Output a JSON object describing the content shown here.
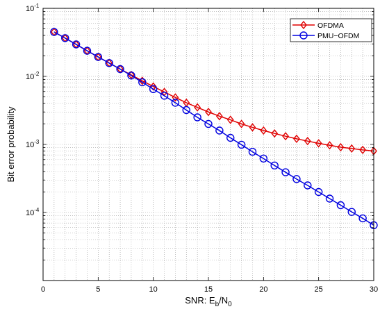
{
  "chart_data": {
    "type": "line",
    "xlabel": {
      "main": "SNR: E",
      "sub1": "b",
      "slash": "/N",
      "sub2": "0"
    },
    "ylabel": "Bit error probability",
    "xlim": [
      0,
      30
    ],
    "ylim": [
      1e-05,
      0.1
    ],
    "yscale": "log",
    "grid": true,
    "legend_position": "top-right",
    "x_ticks": [
      0,
      5,
      10,
      15,
      20,
      25,
      30
    ],
    "x_tick_labels": [
      "0",
      "5",
      "10",
      "15",
      "20",
      "25",
      "30"
    ],
    "y_ticks": [
      0.1,
      0.01,
      0.001,
      0.0001
    ],
    "y_tick_labels": [
      {
        "base": "10",
        "exp": "-1"
      },
      {
        "base": "10",
        "exp": "-2"
      },
      {
        "base": "10",
        "exp": "-3"
      },
      {
        "base": "10",
        "exp": "-4"
      }
    ],
    "x": [
      1,
      2,
      3,
      4,
      5,
      6,
      7,
      8,
      9,
      10,
      11,
      12,
      13,
      14,
      15,
      16,
      17,
      18,
      19,
      20,
      21,
      22,
      23,
      24,
      25,
      26,
      27,
      28,
      29,
      30
    ],
    "series": [
      {
        "name": "OFDMA",
        "color": "#e00000",
        "marker": "diamond",
        "values": [
          0.045,
          0.0365,
          0.0295,
          0.0238,
          0.0193,
          0.0157,
          0.0128,
          0.0105,
          0.0086,
          0.0071,
          0.0059,
          0.0049,
          0.0041,
          0.0035,
          0.003,
          0.0026,
          0.0023,
          0.002,
          0.00178,
          0.0016,
          0.00145,
          0.00132,
          0.00121,
          0.00112,
          0.00104,
          0.00097,
          0.00091,
          0.00087,
          0.00083,
          0.0008
        ]
      },
      {
        "name": "PMU−OFDM",
        "color": "#0000e0",
        "marker": "circle",
        "values": [
          0.045,
          0.0365,
          0.0295,
          0.0238,
          0.0193,
          0.0157,
          0.0128,
          0.0103,
          0.0082,
          0.0065,
          0.0052,
          0.0041,
          0.0032,
          0.0025,
          0.002,
          0.0016,
          0.00125,
          0.00099,
          0.00078,
          0.00062,
          0.00049,
          0.00039,
          0.00031,
          0.00025,
          0.0002,
          0.00016,
          0.000128,
          0.000102,
          8.2e-05,
          6.5e-05
        ]
      }
    ]
  }
}
